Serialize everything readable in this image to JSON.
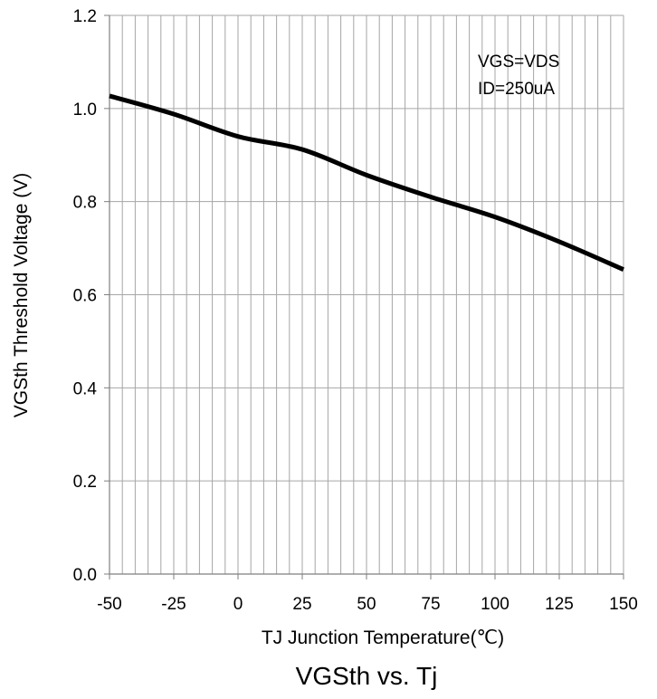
{
  "chart_data": {
    "type": "line",
    "title": "VGSth vs. Tj",
    "xlabel": "TJ  Junction Temperature(℃)",
    "ylabel": "VGSth Threshold Voltage (V)",
    "xlim": [
      -50,
      150
    ],
    "ylim": [
      0.0,
      1.2
    ],
    "x_ticks": [
      "-50",
      "-25",
      "0",
      "25",
      "50",
      "75",
      "100",
      "125",
      "150"
    ],
    "y_ticks": [
      "0.0",
      "0.2",
      "0.4",
      "0.6",
      "0.8",
      "1.0",
      "1.2"
    ],
    "x_tick_values": [
      -50,
      -25,
      0,
      25,
      50,
      75,
      100,
      125,
      150
    ],
    "y_tick_values": [
      0.0,
      0.2,
      0.4,
      0.6,
      0.8,
      1.0,
      1.2
    ],
    "x_minor_step": 5,
    "grid": true,
    "annotations": [
      "VGS=VDS",
      "ID=250uA"
    ],
    "series": [
      {
        "x": [
          -50,
          -25,
          0,
          25,
          50,
          75,
          100,
          125,
          150
        ],
        "y": [
          1.027,
          0.988,
          0.94,
          0.912,
          0.857,
          0.81,
          0.767,
          0.714,
          0.654
        ]
      }
    ],
    "colors": {
      "line": "#000000",
      "grid": "#a6a6a6",
      "axis": "#7f7f7f"
    }
  }
}
